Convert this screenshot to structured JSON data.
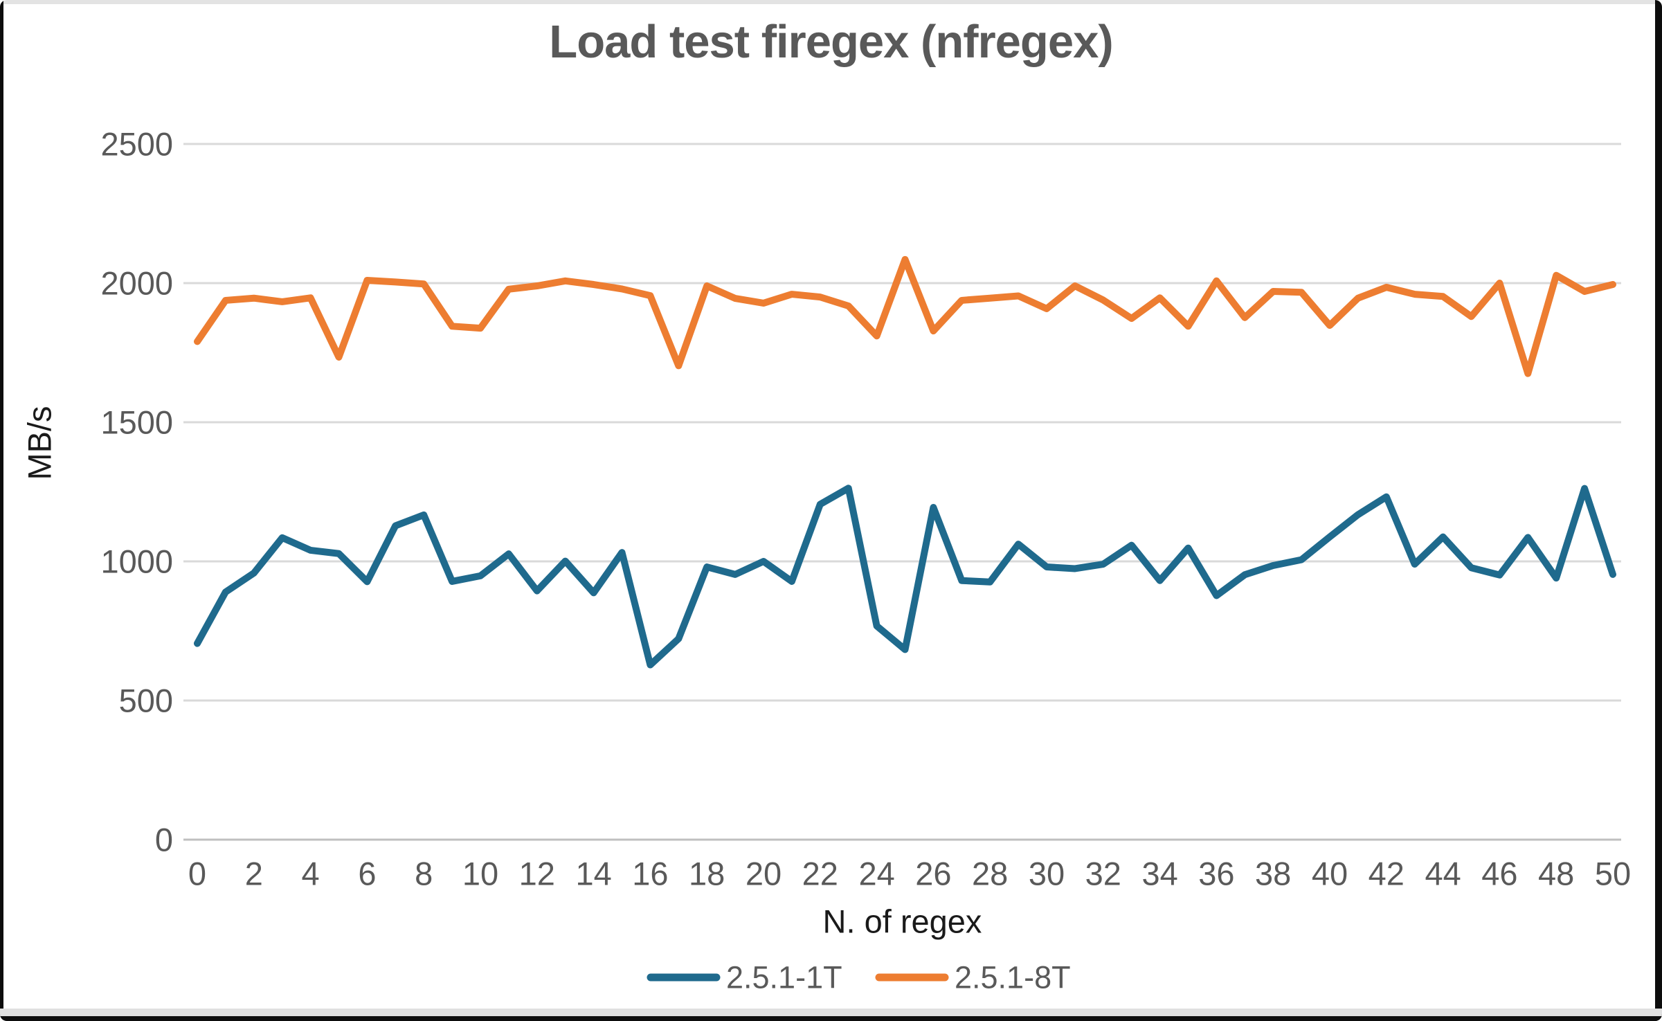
{
  "frame": {
    "background": "#ffffff",
    "border_color": "#0d0d0d",
    "top_strip_color": "#e3e3e3",
    "bottom_strip_color": "#e0e0e0"
  },
  "chart_data": {
    "type": "line",
    "title": "Load test firegex (nfregex)",
    "xlabel": "N. of regex",
    "ylabel": "MB/s",
    "x": [
      0,
      1,
      2,
      3,
      4,
      5,
      6,
      7,
      8,
      9,
      10,
      11,
      12,
      13,
      14,
      15,
      16,
      17,
      18,
      19,
      20,
      21,
      22,
      23,
      24,
      25,
      26,
      27,
      28,
      29,
      30,
      31,
      32,
      33,
      34,
      35,
      36,
      37,
      38,
      39,
      40,
      41,
      42,
      43,
      44,
      45,
      46,
      47,
      48,
      49,
      50
    ],
    "xtick_labels": [
      "0",
      "2",
      "4",
      "6",
      "8",
      "10",
      "12",
      "14",
      "16",
      "18",
      "20",
      "22",
      "24",
      "26",
      "28",
      "30",
      "32",
      "34",
      "36",
      "38",
      "40",
      "42",
      "44",
      "46",
      "48",
      "50"
    ],
    "ylim": [
      0,
      2500
    ],
    "ytick_labels": [
      "0",
      "500",
      "1000",
      "1500",
      "2000",
      "2500"
    ],
    "ytick_values": [
      0,
      500,
      1000,
      1500,
      2000,
      2500
    ],
    "grid": "horizontal",
    "grid_color": "#d9d9d9",
    "axis_line_color": "#bfbfbf",
    "tick_text_color": "#595959",
    "axis_title_color": "#1a1a1a",
    "title_color": "#595959",
    "legend_position": "bottom",
    "series": [
      {
        "name": "2.5.1-1T",
        "color": "#1f6a8d",
        "values": [
          705,
          890,
          958,
          1085,
          1040,
          1028,
          927,
          1128,
          1167,
          928,
          948,
          1027,
          894,
          1001,
          887,
          1032,
          628,
          722,
          980,
          953,
          1000,
          928,
          1205,
          1263,
          768,
          683,
          1194,
          931,
          926,
          1062,
          980,
          974,
          990,
          1058,
          931,
          1048,
          877,
          952,
          985,
          1006,
          1088,
          1168,
          1232,
          990,
          1088,
          977,
          951,
          1086,
          940,
          1262,
          953
        ]
      },
      {
        "name": "2.5.1-8T",
        "color": "#ed7d31",
        "values": [
          1790,
          1938,
          1946,
          1933,
          1947,
          1734,
          2010,
          2004,
          1997,
          1845,
          1838,
          1978,
          1990,
          2008,
          1995,
          1979,
          1955,
          1703,
          1990,
          1945,
          1928,
          1960,
          1950,
          1918,
          1810,
          2085,
          1828,
          1938,
          1946,
          1954,
          1908,
          1990,
          1939,
          1873,
          1947,
          1845,
          2008,
          1876,
          1970,
          1967,
          1848,
          1946,
          1985,
          1960,
          1952,
          1880,
          2000,
          1675,
          2028,
          1970,
          1995
        ]
      }
    ]
  }
}
